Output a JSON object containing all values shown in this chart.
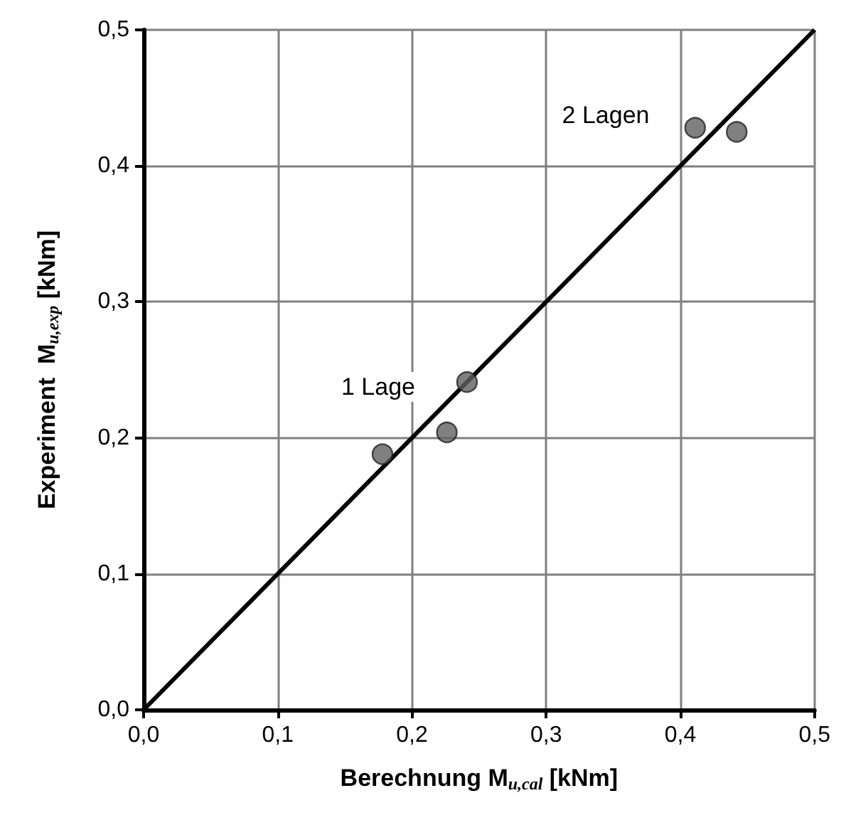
{
  "chart_data": {
    "type": "scatter",
    "xlabel": "Berechnung M$_{u,cal}$ [kNm]",
    "ylabel": "Experiment  M$_{u,exp}$ [kNm]",
    "series": [
      {
        "color": "#606060",
        "x": [
          0.178,
          0.226,
          0.241,
          0.411,
          0.442
        ],
        "values": [
          0.188,
          0.204,
          0.241,
          0.428,
          0.425
        ]
      },
      {
        "type": "line",
        "color": "#000000",
        "x": [
          0,
          0.5
        ],
        "values": [
          0,
          0.5
        ],
        "marker": "none"
      }
    ],
    "xlim": [
      0,
      0.5
    ],
    "ylim": [
      0,
      0.5
    ],
    "xticks": [
      {
        "value": 0,
        "label": "0,0"
      },
      {
        "value": 0.1,
        "label": "0,1"
      },
      {
        "value": 0.2,
        "label": "0,2"
      },
      {
        "value": 0.3,
        "label": "0,3"
      },
      {
        "value": 0.4,
        "label": "0,4"
      },
      {
        "value": 0.5,
        "label": "0,5"
      }
    ],
    "yticks": [
      {
        "value": 0,
        "label": "0,0"
      },
      {
        "value": 0.1,
        "label": "0,1"
      },
      {
        "value": 0.2,
        "label": "0,2"
      },
      {
        "value": 0.3,
        "label": "0,3"
      },
      {
        "value": 0.4,
        "label": "0,4"
      },
      {
        "value": 0.5,
        "label": "0,5"
      }
    ],
    "annotations": [
      "1 Lage",
      "2 Lagen"
    ],
    "grid": true,
    "marker": "circle"
  }
}
